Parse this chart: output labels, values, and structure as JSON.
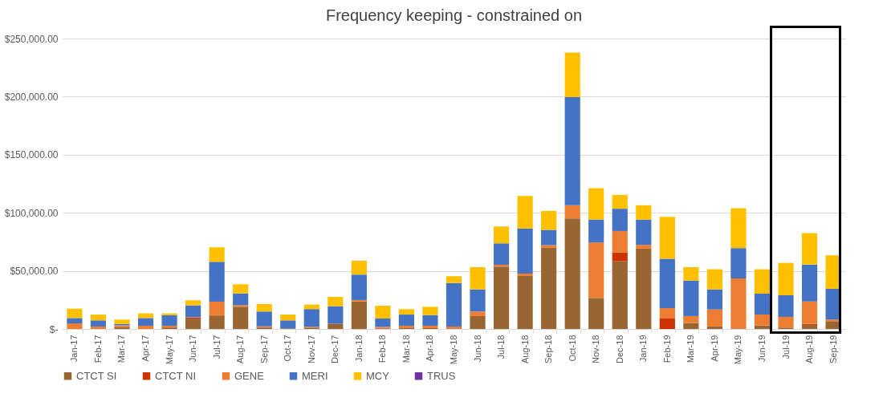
{
  "chart_data": {
    "type": "bar",
    "title": "Frequency keeping - constrained on",
    "stacked": true,
    "categories": [
      "Jan-17",
      "Feb-17",
      "Mar-17",
      "Apr-17",
      "May-17",
      "Jun-17",
      "Jul-17",
      "Aug-17",
      "Sep-17",
      "Oct-17",
      "Nov-17",
      "Dec-17",
      "Jan-18",
      "Feb-18",
      "Mar-18",
      "Apr-18",
      "May-18",
      "Jun-18",
      "Jul-18",
      "Aug-18",
      "Sep-18",
      "Oct-18",
      "Nov-18",
      "Dec-18",
      "Jan-19",
      "Feb-19",
      "Mar-19",
      "Apr-19",
      "May-19",
      "Jun-19",
      "Jul-19",
      "Aug-19",
      "Sep-19"
    ],
    "series": [
      {
        "name": "CTCT SI",
        "color": "#996633",
        "values": [
          0,
          0,
          1800,
          0,
          1200,
          9000,
          11300,
          19100,
          1200,
          500,
          1200,
          4600,
          23700,
          500,
          1200,
          700,
          500,
          11100,
          53700,
          45600,
          69800,
          95200,
          26700,
          58300,
          69100,
          0,
          5100,
          2100,
          500,
          3000,
          1200,
          3500,
          6200
        ]
      },
      {
        "name": "CTCT NI",
        "color": "#cc3300",
        "values": [
          0,
          0,
          0,
          0,
          600,
          900,
          500,
          0,
          600,
          0,
          null,
          0,
          0,
          500,
          0,
          0,
          0,
          0,
          0,
          0,
          0,
          0,
          0,
          7400,
          0,
          9000,
          0,
          0,
          0,
          0,
          0,
          900,
          0
        ]
      },
      {
        "name": "GENE",
        "color": "#ed7d31",
        "values": [
          4800,
          2100,
          1400,
          2800,
          1000,
          300,
          11700,
          1400,
          500,
          0,
          700,
          0,
          1200,
          800,
          1600,
          2100,
          1600,
          3900,
          1600,
          2100,
          2300,
          11300,
          47700,
          18600,
          3300,
          9000,
          6000,
          14700,
          43000,
          9400,
          9200,
          19300,
          1900
        ]
      },
      {
        "name": "MERI",
        "color": "#4472c4",
        "values": [
          4600,
          5300,
          1200,
          6600,
          9000,
          10100,
          34300,
          10100,
          12700,
          6900,
          15200,
          15000,
          21900,
          7200,
          9600,
          9200,
          37500,
          19100,
          18400,
          38700,
          13200,
          93000,
          19800,
          19200,
          21800,
          42400,
          30600,
          17300,
          26100,
          18000,
          18600,
          31800,
          26500
        ]
      },
      {
        "name": "MCY",
        "color": "#ffc000",
        "values": [
          8100,
          5000,
          3700,
          4000,
          1600,
          4400,
          12500,
          7900,
          6400,
          5000,
          3900,
          8000,
          12000,
          11000,
          4700,
          7100,
          5800,
          19100,
          14500,
          28100,
          16300,
          38500,
          27000,
          11900,
          12300,
          36100,
          11500,
          17300,
          34300,
          21000,
          27900,
          27000,
          28800
        ]
      },
      {
        "name": "TRUS",
        "color": "#7030a0",
        "values": [
          0,
          0,
          0,
          0,
          0,
          0,
          0,
          0,
          0,
          0,
          0,
          0,
          0,
          0,
          0,
          0,
          0,
          0,
          0,
          0,
          0,
          0,
          0,
          0,
          0,
          0,
          0,
          0,
          0,
          0,
          0,
          0,
          0
        ]
      }
    ],
    "ylim": [
      0,
      250000
    ],
    "yticks": [
      {
        "value": 0,
        "label": "$-"
      },
      {
        "value": 50000,
        "label": "$50,000.00"
      },
      {
        "value": 100000,
        "label": "$100,000.00"
      },
      {
        "value": 150000,
        "label": "$150,000.00"
      },
      {
        "value": 200000,
        "label": "$200,000.00"
      },
      {
        "value": 250000,
        "label": "$250,000.00"
      }
    ],
    "grid": "y",
    "legend": "bottom"
  }
}
